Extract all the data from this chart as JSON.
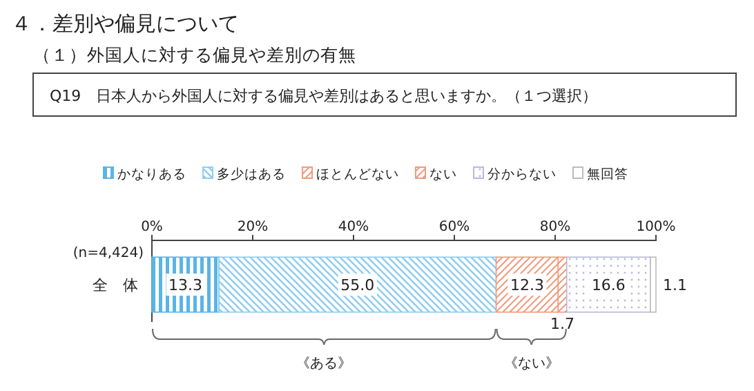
{
  "chart_data": {
    "type": "bar",
    "orientation": "horizontal",
    "stacked": true,
    "title": "４．差別や偏見について",
    "subtitle": "（１）外国人に対する偏見や差別の有無",
    "annotations": [
      "Q19　日本人から外国人に対する偏見や差別はあると思いますか。（１つ選択）",
      "(n=4,424)",
      "《ある》",
      "《ない》"
    ],
    "categories": [
      "全　体"
    ],
    "series": [
      {
        "name": "かなりある",
        "color": "#5ab4e6",
        "values": [
          13.3
        ],
        "value_labels": [
          "13.3"
        ]
      },
      {
        "name": "多少はある",
        "color": "#8fcdf0",
        "values": [
          55.0
        ],
        "value_labels": [
          "55.0"
        ]
      },
      {
        "name": "ほとんどない",
        "color": "#f19a7c",
        "values": [
          12.3
        ],
        "value_labels": [
          "12.3"
        ]
      },
      {
        "name": "ない",
        "color": "#f19a7c",
        "values": [
          1.7
        ],
        "value_labels": [
          "1.7"
        ]
      },
      {
        "name": "分からない",
        "color": "#b9b9dc",
        "values": [
          16.6
        ],
        "value_labels": [
          "16.6"
        ]
      },
      {
        "name": "無回答",
        "color": "#bbbbbb",
        "values": [
          1.1
        ],
        "value_labels": [
          "1.1"
        ]
      }
    ],
    "xlim": [
      0,
      100
    ],
    "xticks": [
      {
        "value": 0,
        "label": "0%"
      },
      {
        "value": 20,
        "label": "20%"
      },
      {
        "value": 40,
        "label": "40%"
      },
      {
        "value": 60,
        "label": "60%"
      },
      {
        "value": 80,
        "label": "80%"
      },
      {
        "value": 100,
        "label": "100%"
      }
    ],
    "legend": "top",
    "grid": false
  }
}
